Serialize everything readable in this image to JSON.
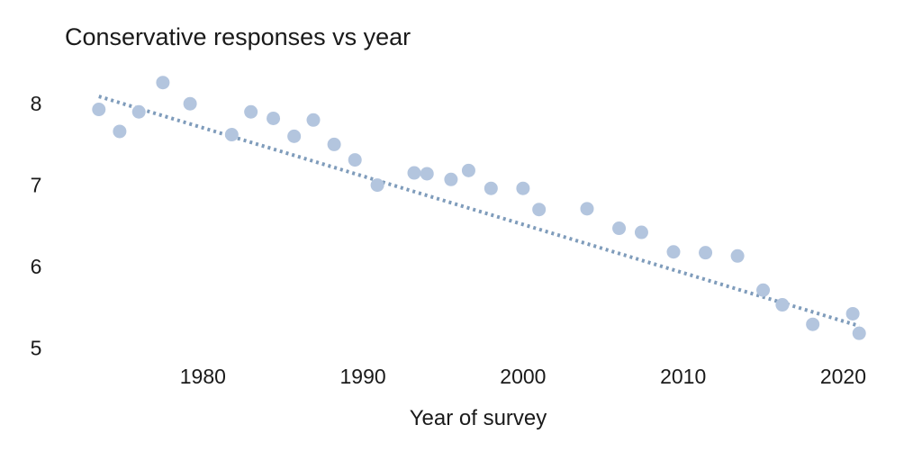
{
  "chart_data": {
    "type": "scatter",
    "title": "Conservative responses vs year",
    "xlabel": "Year of survey",
    "ylabel": "",
    "xlim": [
      1972.5,
      2022
    ],
    "ylim": [
      4.85,
      8.5
    ],
    "xticks": [
      1980,
      1990,
      2000,
      2010,
      2020
    ],
    "yticks": [
      5,
      6,
      7,
      8
    ],
    "grid": false,
    "legend": "none",
    "colors": {
      "points": "#b3c5de",
      "trend": "#7f9cbb"
    },
    "series": [
      {
        "x": [
          1973.5,
          1974.8,
          1976.0,
          1977.5,
          1979.2,
          1981.8,
          1983.0,
          1984.4,
          1985.7,
          1986.9,
          1988.2,
          1989.5,
          1990.9,
          1993.2,
          1994.0,
          1995.5,
          1996.6,
          1998.0,
          2000.0,
          2001.0,
          2004.0,
          2006.0,
          2007.4,
          2009.4,
          2011.4,
          2013.4,
          2015.0,
          2016.2,
          2018.1,
          2020.6,
          2021.0
        ],
        "y": [
          7.93,
          7.66,
          7.9,
          8.26,
          8.0,
          7.62,
          7.9,
          7.82,
          7.6,
          7.8,
          7.5,
          7.31,
          7.0,
          7.15,
          7.14,
          7.07,
          7.18,
          6.96,
          6.96,
          6.7,
          6.71,
          6.47,
          6.42,
          6.18,
          6.17,
          6.13,
          5.71,
          5.53,
          5.29,
          5.42,
          5.18
        ]
      }
    ],
    "trendline": {
      "x": [
        1973.5,
        2021.0
      ],
      "y": [
        8.09,
        5.27
      ]
    }
  }
}
